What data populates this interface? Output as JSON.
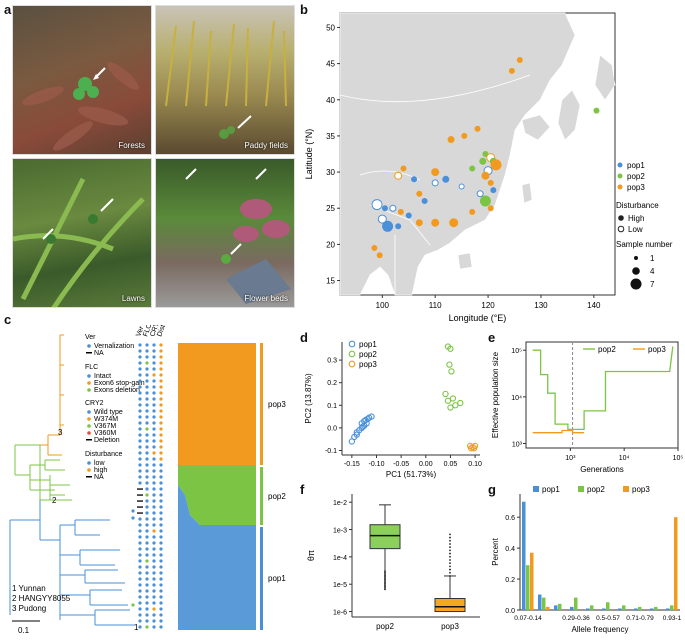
{
  "panels": {
    "a": {
      "label": "a",
      "photos": [
        {
          "caption": "Forests"
        },
        {
          "caption": "Paddy fields"
        },
        {
          "caption": "Lawns"
        },
        {
          "caption": "Flower beds"
        }
      ]
    },
    "b": {
      "label": "b"
    },
    "c": {
      "label": "c"
    },
    "d": {
      "label": "d"
    },
    "e": {
      "label": "e"
    },
    "f": {
      "label": "f"
    },
    "g": {
      "label": "g"
    }
  },
  "map": {
    "xlabel": "Longitude (°E)",
    "ylabel": "Latitude (°N)",
    "xticks": [
      100,
      110,
      120,
      130,
      140
    ],
    "yticks": [
      15,
      20,
      25,
      30,
      35,
      40,
      45,
      50
    ],
    "legend_pops": [
      {
        "name": "pop1",
        "color": "#4a90d9"
      },
      {
        "name": "pop2",
        "color": "#7cc544"
      },
      {
        "name": "pop3",
        "color": "#f29a1f"
      }
    ],
    "disturbance_title": "Disturbance",
    "disturbance": [
      "High",
      "Low"
    ],
    "sample_title": "Sample number",
    "sample_sizes": [
      "1",
      "4",
      "7"
    ]
  },
  "tree": {
    "legend": {
      "ver_title": "Ver",
      "ver": [
        "Vernalization",
        "NA"
      ],
      "flc_title": "FLC",
      "flc": [
        "Intact",
        "Exon6 stop-gain",
        "Exons deletion"
      ],
      "cry2_title": "CRY2",
      "cry2": [
        "Wild type",
        "W374M",
        "V367M",
        "V360M",
        "Deletion"
      ],
      "dist_title": "Disturbance",
      "dist": [
        "low",
        "high",
        "NA"
      ]
    },
    "col_headers": [
      "Ver",
      "FLC",
      "CRY2",
      "Disturbance"
    ],
    "node_labels": [
      "1",
      "2",
      "3"
    ],
    "notes": [
      "1  Yunnan",
      "2  HANGYY8055",
      "3  Pudong"
    ],
    "scale": "0.1",
    "pop_labels": [
      "pop3",
      "pop2",
      "pop1"
    ]
  },
  "chart_data": [
    {
      "type": "scatter",
      "panel": "d",
      "xlabel": "PC1 (51.73%)",
      "ylabel": "PC2 (13.87%)",
      "xlim": [
        -0.17,
        0.11
      ],
      "ylim": [
        -0.12,
        0.38
      ],
      "xticks": [
        "-0.15",
        "-0.10",
        "-0.05",
        "0.00",
        "0.05",
        "0.10"
      ],
      "yticks": [
        "-0.1",
        "0.0",
        "0.1",
        "0.2",
        "0.3"
      ],
      "series": [
        {
          "name": "pop1",
          "color": "#4a90d9",
          "points": [
            [
              -0.15,
              -0.06
            ],
            [
              -0.145,
              -0.04
            ],
            [
              -0.14,
              -0.02
            ],
            [
              -0.135,
              -0.01
            ],
            [
              -0.13,
              0.0
            ],
            [
              -0.125,
              0.01
            ],
            [
              -0.12,
              0.02
            ],
            [
              -0.125,
              0.03
            ],
            [
              -0.118,
              0.04
            ],
            [
              -0.115,
              0.045
            ],
            [
              -0.11,
              0.05
            ],
            [
              -0.13,
              0.02
            ],
            [
              -0.14,
              -0.03
            ],
            [
              -0.128,
              0.005
            ],
            [
              -0.122,
              0.035
            ]
          ]
        },
        {
          "name": "pop2",
          "color": "#7cc544",
          "points": [
            [
              0.045,
              0.36
            ],
            [
              0.05,
              0.35
            ],
            [
              0.048,
              0.28
            ],
            [
              0.052,
              0.25
            ],
            [
              0.04,
              0.15
            ],
            [
              0.045,
              0.12
            ],
            [
              0.06,
              0.1
            ],
            [
              0.055,
              0.13
            ],
            [
              0.07,
              0.11
            ],
            [
              0.05,
              0.09
            ]
          ]
        },
        {
          "name": "pop3",
          "color": "#f29a1f",
          "points": [
            [
              0.09,
              -0.08
            ],
            [
              0.095,
              -0.085
            ],
            [
              0.1,
              -0.08
            ],
            [
              0.098,
              -0.09
            ],
            [
              0.092,
              -0.09
            ]
          ]
        }
      ]
    },
    {
      "type": "line",
      "panel": "e",
      "xlabel": "Generations",
      "ylabel": "Effective population size",
      "xscale": "log",
      "yscale": "log",
      "xticks": [
        "10³",
        "10⁴",
        "10⁵"
      ],
      "yticks": [
        "10³",
        "10⁴",
        "10⁵"
      ],
      "vline": 1100,
      "series": [
        {
          "name": "pop2",
          "color": "#7cc544",
          "points": [
            [
              200,
              100000
            ],
            [
              280,
              100000
            ],
            [
              280,
              30000
            ],
            [
              380,
              30000
            ],
            [
              380,
              12000
            ],
            [
              520,
              12000
            ],
            [
              520,
              2600
            ],
            [
              900,
              2600
            ],
            [
              900,
              2000
            ],
            [
              1800,
              2000
            ],
            [
              1800,
              5000
            ],
            [
              4500,
              5000
            ],
            [
              4500,
              35000
            ],
            [
              70000,
              35000
            ],
            [
              80000,
              120000
            ]
          ]
        },
        {
          "name": "pop3",
          "color": "#f29a1f",
          "points": [
            [
              200,
              1700
            ],
            [
              700,
              1700
            ],
            [
              700,
              1900
            ],
            [
              1100,
              1900
            ],
            [
              1100,
              1700
            ],
            [
              1800,
              1700
            ]
          ]
        }
      ]
    },
    {
      "type": "box",
      "panel": "f",
      "ylabel": "θπ",
      "yscale": "log",
      "yticks": [
        "1e-6",
        "1e-5",
        "1e-4",
        "1e-3",
        "1e-2"
      ],
      "categories": [
        "pop2",
        "pop3"
      ],
      "boxes": [
        {
          "name": "pop2",
          "color": "#8bd05a",
          "q1": 0.0002,
          "median": 0.0006,
          "q3": 0.0015,
          "whisker_low": 3e-05,
          "whisker_high": 0.008
        },
        {
          "name": "pop3",
          "color": "#f5a623",
          "q1": 1e-06,
          "median": 1.5e-06,
          "q3": 3e-06,
          "whisker_low": 1e-06,
          "whisker_high": 2e-05
        }
      ]
    },
    {
      "type": "bar",
      "panel": "g",
      "xlabel": "Allele frequency",
      "ylabel": "Percent",
      "ylim": [
        0,
        0.75
      ],
      "yticks": [
        "0.0",
        "0.2",
        "0.4",
        "0.6"
      ],
      "categories": [
        "0.07-0.14",
        "",
        "",
        "0.29-0.36",
        "",
        "0.5-0.57",
        "",
        "0.71-0.79",
        "",
        "0.93-1"
      ],
      "series": [
        {
          "name": "pop1",
          "color": "#4a90d9",
          "values": [
            0.7,
            0.1,
            0.03,
            0.02,
            0.01,
            0.01,
            0.01,
            0.01,
            0.01,
            0.01
          ]
        },
        {
          "name": "pop2",
          "color": "#7cc544",
          "values": [
            0.29,
            0.08,
            0.04,
            0.08,
            0.03,
            0.05,
            0.03,
            0.02,
            0.02,
            0.03
          ]
        },
        {
          "name": "pop3",
          "color": "#f29a1f",
          "values": [
            0.37,
            0.02,
            0.0,
            0.0,
            0.0,
            0.0,
            0.0,
            0.0,
            0.0,
            0.6
          ]
        }
      ]
    }
  ]
}
